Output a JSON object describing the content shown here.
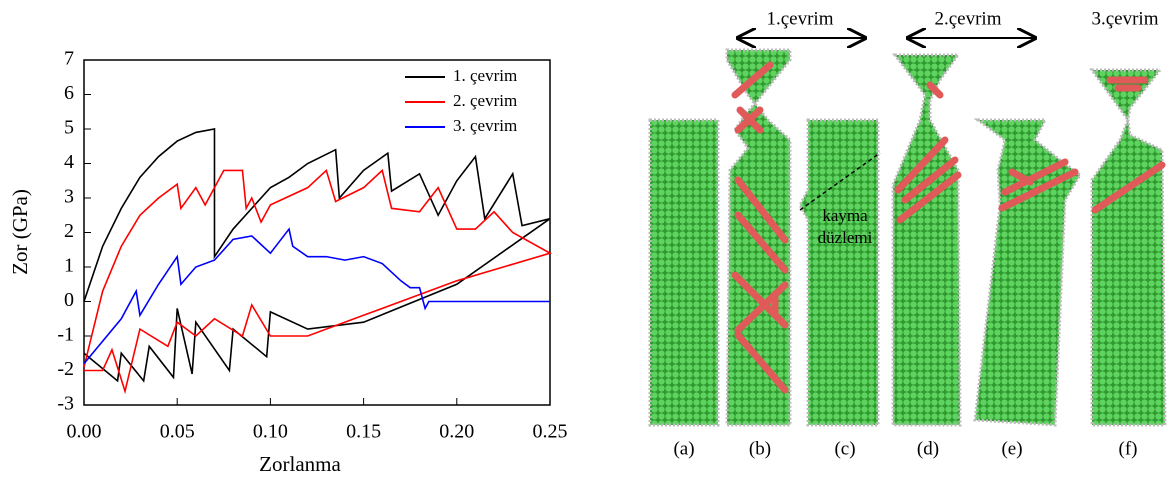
{
  "chart_data": {
    "type": "line",
    "xlabel": "Zorlanma",
    "ylabel": "Zor (GPa)",
    "xlim": [
      0,
      0.25
    ],
    "ylim": [
      -3,
      7
    ],
    "xticks": [
      {
        "value": 0,
        "label": "0.00"
      },
      {
        "value": 0.05,
        "label": "0.05"
      },
      {
        "value": 0.1,
        "label": "0.10"
      },
      {
        "value": 0.15,
        "label": "0.15"
      },
      {
        "value": 0.2,
        "label": "0.20"
      },
      {
        "value": 0.25,
        "label": "0.25"
      }
    ],
    "yticks": [
      -3,
      -2,
      -1,
      0,
      1,
      2,
      3,
      4,
      5,
      6,
      7
    ],
    "legend": "upper right",
    "series": [
      {
        "name": "1. çevrim",
        "color": "#000000",
        "x": [
          0,
          0.01,
          0.02,
          0.03,
          0.04,
          0.05,
          0.06,
          0.07,
          0.07,
          0.08,
          0.09,
          0.1,
          0.11,
          0.12,
          0.135,
          0.137,
          0.15,
          0.163,
          0.165,
          0.18,
          0.19,
          0.2,
          0.21,
          0.215,
          0.23,
          0.235,
          0.25,
          0.2,
          0.15,
          0.12,
          0.1,
          0.098,
          0.08,
          0.078,
          0.06,
          0.058,
          0.05,
          0.048,
          0.035,
          0.032,
          0.02,
          0.018,
          0
        ],
        "values": [
          0,
          1.6,
          2.7,
          3.6,
          4.2,
          4.65,
          4.9,
          5.0,
          1.3,
          2.1,
          2.7,
          3.3,
          3.6,
          4.0,
          4.4,
          3.0,
          3.8,
          4.3,
          3.2,
          3.7,
          2.5,
          3.5,
          4.2,
          2.4,
          3.7,
          2.2,
          2.4,
          0.5,
          -0.6,
          -0.8,
          -0.3,
          -1.6,
          -0.8,
          -2.0,
          -0.6,
          -2.1,
          -0.2,
          -2.2,
          -1.3,
          -2.3,
          -1.5,
          -2.3,
          -1.5
        ]
      },
      {
        "name": "2. çevrim",
        "color": "#ff0000",
        "x": [
          0,
          0.01,
          0.02,
          0.03,
          0.04,
          0.05,
          0.052,
          0.06,
          0.065,
          0.075,
          0.085,
          0.087,
          0.09,
          0.095,
          0.1,
          0.12,
          0.13,
          0.135,
          0.15,
          0.16,
          0.165,
          0.18,
          0.19,
          0.2,
          0.21,
          0.22,
          0.23,
          0.25,
          0.2,
          0.15,
          0.12,
          0.1,
          0.09,
          0.085,
          0.07,
          0.06,
          0.05,
          0.045,
          0.03,
          0.022,
          0.015,
          0.01,
          0
        ],
        "values": [
          -1.9,
          0.3,
          1.6,
          2.5,
          3.0,
          3.4,
          2.7,
          3.3,
          2.8,
          3.8,
          3.8,
          2.7,
          3.0,
          2.3,
          2.8,
          3.3,
          3.8,
          2.9,
          3.3,
          3.8,
          2.7,
          2.6,
          3.3,
          2.1,
          2.1,
          2.6,
          2.0,
          1.4,
          0.6,
          -0.4,
          -1.0,
          -1.0,
          -0.1,
          -1.0,
          -0.5,
          -1.0,
          -0.6,
          -1.3,
          -0.8,
          -2.6,
          -1.4,
          -2.0,
          -2.0
        ]
      },
      {
        "name": "3. çevrim",
        "color": "#0000ff",
        "x": [
          0,
          0.02,
          0.028,
          0.03,
          0.04,
          0.05,
          0.052,
          0.06,
          0.07,
          0.08,
          0.09,
          0.1,
          0.11,
          0.112,
          0.12,
          0.13,
          0.14,
          0.15,
          0.16,
          0.17,
          0.175,
          0.18,
          0.183,
          0.185,
          0.25
        ],
        "values": [
          -1.8,
          -0.5,
          0.3,
          -0.4,
          0.5,
          1.3,
          0.5,
          1.0,
          1.2,
          1.8,
          1.9,
          1.4,
          2.1,
          1.6,
          1.3,
          1.3,
          1.2,
          1.3,
          1.1,
          0.6,
          0.4,
          0.4,
          -0.2,
          0,
          0
        ]
      }
    ]
  },
  "figure": {
    "cycle_labels": [
      "1.çevrim",
      "2.çevrim",
      "3.çevrim"
    ],
    "panel_labels": [
      "(a)",
      "(b)",
      "(c)",
      "(d)",
      "(e)",
      "(f)"
    ],
    "annotation": [
      "kayma",
      "düzlemi"
    ]
  }
}
